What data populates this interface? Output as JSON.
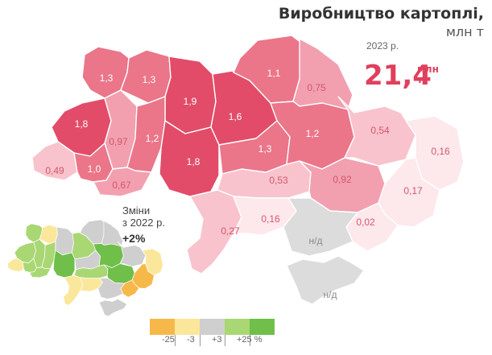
{
  "title": {
    "main": "Виробництво картоплі,",
    "unit": "млн т"
  },
  "year": "2023 р.",
  "total": {
    "value": "21,4",
    "unit_line1": "млн",
    "unit_line2": "т"
  },
  "change": {
    "label_line1": "Зміни",
    "label_line2": "з 2022 р.",
    "value": "+2%"
  },
  "colors": {
    "main_scale": [
      "#fde8ec",
      "#f8c3cd",
      "#f2a0b0",
      "#eb7589",
      "#e24c69"
    ],
    "change_scale": {
      "strong_decrease": "#f7b84a",
      "decrease": "#fbe79b",
      "stable": "#cfcfcf",
      "increase": "#a9d774",
      "strong_increase": "#6fbf4a"
    },
    "no_data": "#dcdcdc",
    "accent": "#e0405d"
  },
  "regions": [
    {
      "name": "Volyn",
      "label": "1,3",
      "value": 1.3
    },
    {
      "name": "Rivne",
      "label": "1,3",
      "value": 1.3
    },
    {
      "name": "Zhytomyr",
      "label": "1,9",
      "value": 1.9
    },
    {
      "name": "Kyiv",
      "label": "1,6",
      "value": 1.6
    },
    {
      "name": "Chernihiv",
      "label": "1,1",
      "value": 1.1
    },
    {
      "name": "Sumy",
      "label": "0,75",
      "value": 0.75
    },
    {
      "name": "Lviv",
      "label": "1,8",
      "value": 1.8
    },
    {
      "name": "Ternopil",
      "label": "0,97",
      "value": 0.97
    },
    {
      "name": "Khmelnytskyi",
      "label": "1,2",
      "value": 1.2
    },
    {
      "name": "Vinnytsia",
      "label": "1,8",
      "value": 1.8
    },
    {
      "name": "Cherkasy",
      "label": "1,3",
      "value": 1.3
    },
    {
      "name": "Poltava",
      "label": "1,2",
      "value": 1.2
    },
    {
      "name": "Kharkiv",
      "label": "0,54",
      "value": 0.54
    },
    {
      "name": "Luhansk",
      "label": "0,16",
      "value": 0.16
    },
    {
      "name": "Zakarpattia",
      "label": "0,49",
      "value": 0.49
    },
    {
      "name": "Ivano-Frankivsk",
      "label": "1,0",
      "value": 1.0
    },
    {
      "name": "Chernivtsi",
      "label": "0,67",
      "value": 0.67
    },
    {
      "name": "Kirovohrad",
      "label": "0,53",
      "value": 0.53
    },
    {
      "name": "Dnipropetrovsk",
      "label": "0,92",
      "value": 0.92
    },
    {
      "name": "Donetsk",
      "label": "0,17",
      "value": 0.17
    },
    {
      "name": "Odesa",
      "label": "0,27",
      "value": 0.27
    },
    {
      "name": "Mykolaiv",
      "label": "0,16",
      "value": 0.16
    },
    {
      "name": "Zaporizhzhia",
      "label": "0,02",
      "value": 0.02
    },
    {
      "name": "Kherson",
      "label": "н/д",
      "value": null
    },
    {
      "name": "Crimea",
      "label": "н/д",
      "value": null
    }
  ],
  "mini_regions": [
    {
      "name": "Volyn",
      "category": "increase"
    },
    {
      "name": "Rivne",
      "category": "decrease"
    },
    {
      "name": "Zhytomyr",
      "category": "stable"
    },
    {
      "name": "Kyiv",
      "category": "increase"
    },
    {
      "name": "Chernihiv",
      "category": "stable"
    },
    {
      "name": "Sumy",
      "category": "stable"
    },
    {
      "name": "Lviv",
      "category": "increase"
    },
    {
      "name": "Ternopil",
      "category": "increase"
    },
    {
      "name": "Khmelnytskyi",
      "category": "increase"
    },
    {
      "name": "Vinnytsia",
      "category": "strong_increase"
    },
    {
      "name": "Cherkasy",
      "category": "stable"
    },
    {
      "name": "Poltava",
      "category": "strong_increase"
    },
    {
      "name": "Kharkiv",
      "category": "stable"
    },
    {
      "name": "Luhansk",
      "category": "decrease"
    },
    {
      "name": "Zakarpattia",
      "category": "decrease"
    },
    {
      "name": "Ivano-Frankivsk",
      "category": "increase"
    },
    {
      "name": "Chernivtsi",
      "category": "increase"
    },
    {
      "name": "Kirovohrad",
      "category": "increase"
    },
    {
      "name": "Dnipropetrovsk",
      "category": "strong_increase"
    },
    {
      "name": "Donetsk",
      "category": "strong_decrease"
    },
    {
      "name": "Odesa",
      "category": "decrease"
    },
    {
      "name": "Mykolaiv",
      "category": "decrease"
    },
    {
      "name": "Zaporizhzhia",
      "category": "strong_decrease"
    },
    {
      "name": "Kherson",
      "category": "stable"
    },
    {
      "name": "Crimea",
      "category": "stable"
    }
  ],
  "legend": {
    "categories": [
      "strong_decrease",
      "decrease",
      "stable",
      "increase",
      "strong_increase"
    ],
    "labels": [
      "-25",
      "-3",
      "+3",
      "+25 %"
    ]
  }
}
